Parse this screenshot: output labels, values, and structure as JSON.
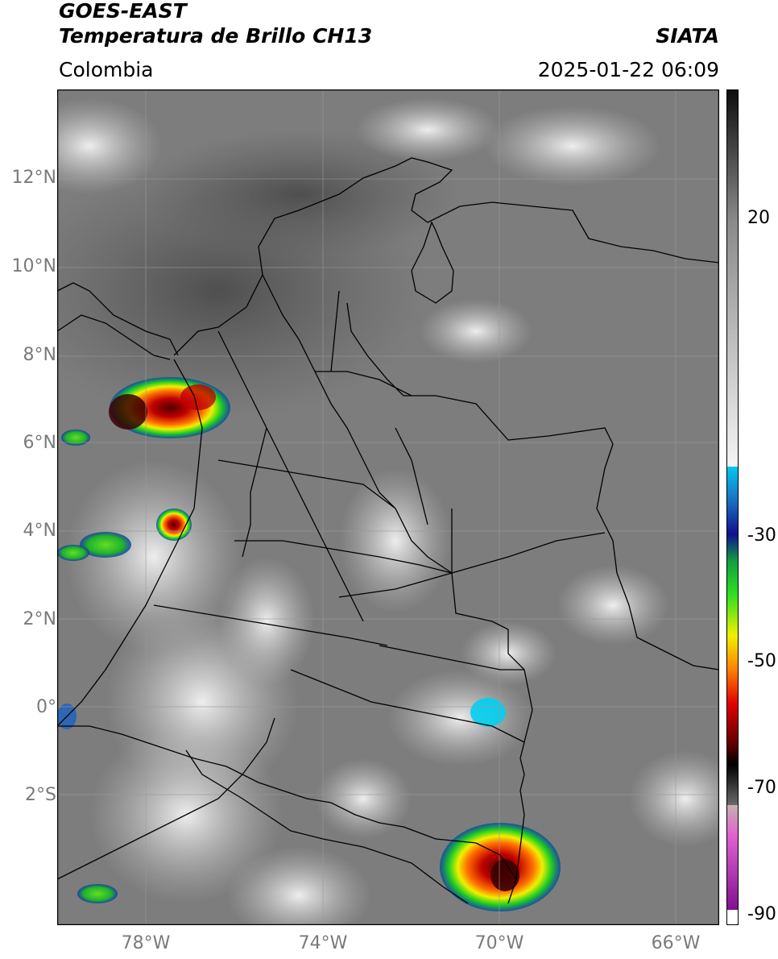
{
  "header": {
    "title_line1": "GOES-EAST",
    "title_line2": "Temperatura de Brillo CH13",
    "region": "Colombia",
    "brand": "SIATA",
    "timestamp": "2025-01-22 06:09"
  },
  "map": {
    "lat_ticks": [
      "12°N",
      "10°N",
      "8°N",
      "6°N",
      "4°N",
      "2°N",
      "0°",
      "2°S"
    ],
    "lon_ticks": [
      "78°W",
      "74°W",
      "70°W",
      "66°W"
    ],
    "lon_range": [
      -80,
      -65
    ],
    "lat_range": [
      -5,
      14
    ]
  },
  "colorbar": {
    "tick_labels": [
      "20",
      "-30",
      "-50",
      "-70",
      "-90"
    ],
    "tick_values": [
      20,
      -30,
      -50,
      -70,
      -90
    ],
    "range": [
      -92,
      40
    ],
    "colors": {
      "warm_top": "#0d0d0d",
      "gray_mid": "#8a8a8a",
      "light": "#f2f2f2",
      "cyan": "#00c8f0",
      "blue": "#1010a0",
      "green": "#20d020",
      "yellow": "#f0f000",
      "orange": "#ff8000",
      "red": "#e00000",
      "dark_red": "#600000",
      "magenta": "#e060d0",
      "purple": "#801090"
    }
  }
}
